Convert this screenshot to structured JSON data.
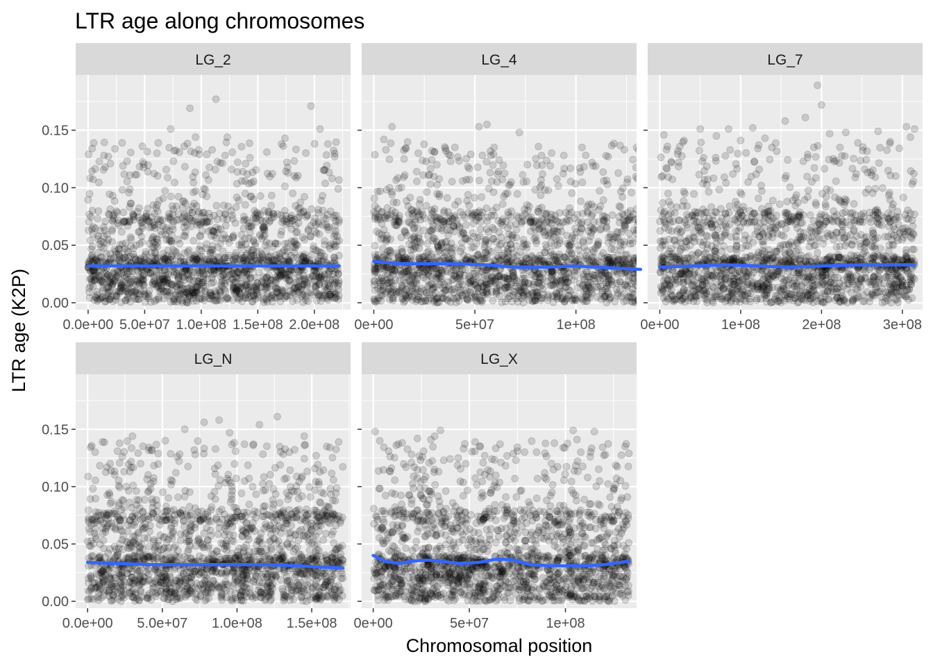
{
  "chart_data": {
    "type": "scatter",
    "title": "LTR age along chromosomes",
    "xlabel": "Chromosomal position",
    "ylabel": "LTR age (K2P)",
    "y_ticks": [
      "0.00",
      "0.05",
      "0.10",
      "0.15"
    ],
    "ylim": [
      -0.006,
      0.198
    ],
    "grid": true,
    "point_style": {
      "color": "#000000",
      "opacity": 0.15,
      "shape": "circle"
    },
    "smooth_color": "#3366FF",
    "strip_fill": "#D9D9D9",
    "panel_fill": "#EBEBEB",
    "panels": [
      {
        "label": "LG_2",
        "xlim": [
          -11000000.0,
          232000000.0
        ],
        "x_ticks": [
          0,
          50000000.0,
          100000000.0,
          150000000.0,
          200000000.0
        ],
        "x_tick_labels": [
          "0.0e+00",
          "5.0e+07",
          "1.0e+08",
          "1.5e+08",
          "2.0e+08"
        ],
        "x_max": 222000000.0,
        "smooth": [
          [
            0,
            0.032
          ],
          [
            50000000.0,
            0.032
          ],
          [
            100000000.0,
            0.032
          ],
          [
            150000000.0,
            0.032
          ],
          [
            222000000.0,
            0.032
          ]
        ],
        "highlights": [
          [
            113000000.0,
            0.177
          ],
          [
            90000000.0,
            0.169
          ],
          [
            197000000.0,
            0.171
          ],
          [
            73000000.0,
            0.151
          ],
          [
            205000000.0,
            0.151
          ],
          [
            123000000.0,
            0.144
          ],
          [
            95000000.0,
            0.144
          ],
          [
            5000000.0,
            0.139
          ],
          [
            30000000.0,
            0.139
          ],
          [
            174000000.0,
            0.143
          ],
          [
            62000000.0,
            0.139
          ],
          [
            212000000.0,
            0.138
          ],
          [
            171000000.0,
            0.138
          ],
          [
            48000000.0,
            0.136
          ],
          [
            85000000.0,
            0.136
          ],
          [
            158000000.0,
            0.131
          ],
          [
            14000000.0,
            0.128
          ],
          [
            218000000.0,
            0.127
          ],
          [
            105000000.0,
            0.129
          ],
          [
            143000000.0,
            0.126
          ]
        ]
      },
      {
        "label": "LG_4",
        "xlim": [
          -6000000.0,
          130000000.0
        ],
        "x_ticks": [
          0,
          50000000.0,
          100000000.0
        ],
        "x_tick_labels": [
          "0e+00",
          "5e+07",
          "1e+08"
        ],
        "x_max": 132000000.0,
        "smooth": [
          [
            0,
            0.036
          ],
          [
            12000000.0,
            0.034
          ],
          [
            25000000.0,
            0.034
          ],
          [
            40000000.0,
            0.034
          ],
          [
            55000000.0,
            0.033
          ],
          [
            70000000.0,
            0.031
          ],
          [
            85000000.0,
            0.031
          ],
          [
            100000000.0,
            0.032
          ],
          [
            110000000.0,
            0.031
          ],
          [
            132000000.0,
            0.029
          ]
        ],
        "highlights": [
          [
            56000000.0,
            0.155
          ],
          [
            52000000.0,
            0.153
          ],
          [
            9000000.0,
            0.153
          ],
          [
            72000000.0,
            0.148
          ],
          [
            5000000.0,
            0.142
          ],
          [
            130000000.0,
            0.135
          ],
          [
            103000000.0,
            0.135
          ],
          [
            6000000.0,
            0.133
          ],
          [
            30000000.0,
            0.131
          ],
          [
            48000000.0,
            0.129
          ],
          [
            131000000.0,
            0.133
          ],
          [
            22000000.0,
            0.13
          ],
          [
            83000000.0,
            0.128
          ],
          [
            94000000.0,
            0.128
          ],
          [
            116000000.0,
            0.127
          ],
          [
            15000000.0,
            0.125
          ],
          [
            62000000.0,
            0.124
          ],
          [
            38000000.0,
            0.123
          ],
          [
            108000000.0,
            0.122
          ],
          [
            76000000.0,
            0.12
          ]
        ]
      },
      {
        "label": "LG_7",
        "xlim": [
          -15000000.0,
          325000000.0
        ],
        "x_ticks": [
          0,
          100000000.0,
          200000000.0,
          300000000.0
        ],
        "x_tick_labels": [
          "0e+00",
          "1e+08",
          "2e+08",
          "3e+08"
        ],
        "x_max": 315000000.0,
        "smooth": [
          [
            0,
            0.031
          ],
          [
            40000000.0,
            0.032
          ],
          [
            80000000.0,
            0.033
          ],
          [
            120000000.0,
            0.032
          ],
          [
            160000000.0,
            0.031
          ],
          [
            200000000.0,
            0.032
          ],
          [
            250000000.0,
            0.033
          ],
          [
            315000000.0,
            0.033
          ]
        ],
        "highlights": [
          [
            195000000.0,
            0.189
          ],
          [
            200000000.0,
            0.172
          ],
          [
            180000000.0,
            0.161
          ],
          [
            155000000.0,
            0.158
          ],
          [
            115000000.0,
            0.152
          ],
          [
            50000000.0,
            0.151
          ],
          [
            85000000.0,
            0.151
          ],
          [
            230000000.0,
            0.148
          ],
          [
            315000000.0,
            0.151
          ],
          [
            305000000.0,
            0.153
          ],
          [
            270000000.0,
            0.149
          ],
          [
            5000000.0,
            0.146
          ],
          [
            130000000.0,
            0.143
          ],
          [
            210000000.0,
            0.147
          ],
          [
            70000000.0,
            0.145
          ],
          [
            285000000.0,
            0.14
          ],
          [
            100000000.0,
            0.141
          ],
          [
            30000000.0,
            0.141
          ],
          [
            245000000.0,
            0.139
          ],
          [
            310000000.0,
            0.144
          ]
        ]
      },
      {
        "label": "LG_N",
        "xlim": [
          -8000000.0,
          176000000.0
        ],
        "x_ticks": [
          0,
          50000000.0,
          100000000.0,
          150000000.0
        ],
        "x_tick_labels": [
          "0.0e+00",
          "5.0e+07",
          "1.0e+08",
          "1.5e+08"
        ],
        "x_max": 171000000.0,
        "smooth": [
          [
            0,
            0.034
          ],
          [
            20000000.0,
            0.033
          ],
          [
            40000000.0,
            0.032
          ],
          [
            60000000.0,
            0.032
          ],
          [
            80000000.0,
            0.032
          ],
          [
            100000000.0,
            0.032
          ],
          [
            120000000.0,
            0.032
          ],
          [
            140000000.0,
            0.031
          ],
          [
            171000000.0,
            0.029
          ]
        ],
        "highlights": [
          [
            127000000.0,
            0.161
          ],
          [
            88000000.0,
            0.158
          ],
          [
            78000000.0,
            0.156
          ],
          [
            115000000.0,
            0.154
          ],
          [
            65000000.0,
            0.15
          ],
          [
            95000000.0,
            0.147
          ],
          [
            145000000.0,
            0.144
          ],
          [
            30000000.0,
            0.144
          ],
          [
            10000000.0,
            0.139
          ],
          [
            168000000.0,
            0.139
          ],
          [
            52000000.0,
            0.14
          ],
          [
            105000000.0,
            0.137
          ],
          [
            43000000.0,
            0.132
          ],
          [
            160000000.0,
            0.135
          ],
          [
            20000000.0,
            0.131
          ],
          [
            5000000.0,
            0.13
          ],
          [
            135000000.0,
            0.13
          ],
          [
            72000000.0,
            0.128
          ],
          [
            153000000.0,
            0.127
          ],
          [
            60000000.0,
            0.126
          ]
        ]
      },
      {
        "label": "LG_X",
        "xlim": [
          -6000000.0,
          137000000.0
        ],
        "x_ticks": [
          0,
          50000000.0,
          100000000.0
        ],
        "x_tick_labels": [
          "0e+00",
          "5e+07",
          "1e+08"
        ],
        "x_max": 133000000.0,
        "smooth": [
          [
            0,
            0.04
          ],
          [
            6000000.0,
            0.035
          ],
          [
            13000000.0,
            0.033
          ],
          [
            20000000.0,
            0.035
          ],
          [
            28000000.0,
            0.036
          ],
          [
            35000000.0,
            0.035
          ],
          [
            45000000.0,
            0.033
          ],
          [
            55000000.0,
            0.034
          ],
          [
            65000000.0,
            0.037
          ],
          [
            73000000.0,
            0.036
          ],
          [
            82000000.0,
            0.032
          ],
          [
            92000000.0,
            0.031
          ],
          [
            100000000.0,
            0.031
          ],
          [
            110000000.0,
            0.031
          ],
          [
            120000000.0,
            0.032
          ],
          [
            133000000.0,
            0.035
          ]
        ],
        "highlights": [
          [
            35000000.0,
            0.149
          ],
          [
            1000000.0,
            0.148
          ],
          [
            104000000.0,
            0.149
          ],
          [
            115000000.0,
            0.148
          ],
          [
            32000000.0,
            0.144
          ],
          [
            23000000.0,
            0.142
          ],
          [
            30000000.0,
            0.141
          ],
          [
            106000000.0,
            0.141
          ],
          [
            53000000.0,
            0.139
          ],
          [
            131000000.0,
            0.135
          ],
          [
            66000000.0,
            0.137
          ],
          [
            47000000.0,
            0.133
          ],
          [
            12000000.0,
            0.136
          ],
          [
            75000000.0,
            0.131
          ],
          [
            8000000.0,
            0.131
          ],
          [
            108000000.0,
            0.13
          ],
          [
            85000000.0,
            0.13
          ],
          [
            133000000.0,
            0.129
          ],
          [
            20000000.0,
            0.128
          ],
          [
            58000000.0,
            0.127
          ]
        ]
      }
    ]
  }
}
